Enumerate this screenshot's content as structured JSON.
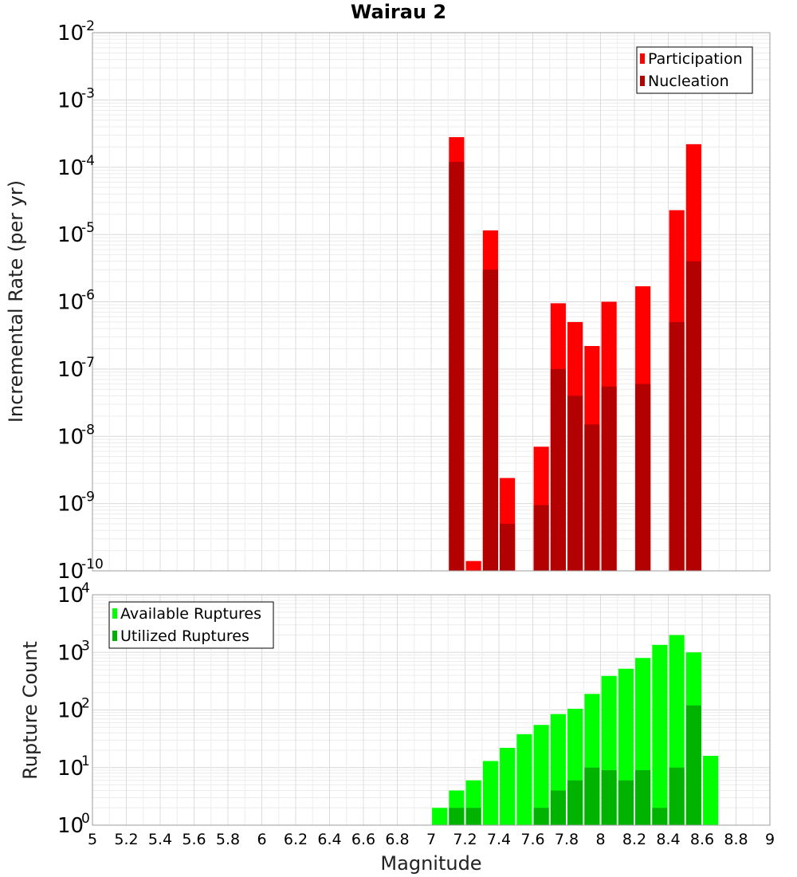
{
  "chart_data": [
    {
      "type": "bar",
      "title": "Wairau 2",
      "xlabel": "",
      "ylabel": "Incremental Rate (per yr)",
      "y_scale": "log",
      "xlim": [
        5,
        9
      ],
      "ylim": [
        1e-10,
        0.01
      ],
      "y_ticks": [
        {
          "base": "10",
          "exp": "-2",
          "value": 0.01
        },
        {
          "base": "10",
          "exp": "-3",
          "value": 0.001
        },
        {
          "base": "10",
          "exp": "-4",
          "value": 0.0001
        },
        {
          "base": "10",
          "exp": "-5",
          "value": 1e-05
        },
        {
          "base": "10",
          "exp": "-6",
          "value": 1e-06
        },
        {
          "base": "10",
          "exp": "-7",
          "value": 1e-07
        },
        {
          "base": "10",
          "exp": "-8",
          "value": 1e-08
        },
        {
          "base": "10",
          "exp": "-9",
          "value": 1e-09
        },
        {
          "base": "10",
          "exp": "-10",
          "value": 1e-10
        }
      ],
      "grid": true,
      "legend_position": "top-right",
      "bar_width": 0.09,
      "series": [
        {
          "name": "Participation",
          "color": "#ff0000",
          "points": [
            {
              "x": 7.15,
              "y": 0.00028
            },
            {
              "x": 7.25,
              "y": 1.4e-10
            },
            {
              "x": 7.35,
              "y": 1.15e-05
            },
            {
              "x": 7.45,
              "y": 2.4e-09
            },
            {
              "x": 7.65,
              "y": 7e-09
            },
            {
              "x": 7.75,
              "y": 9.5e-07
            },
            {
              "x": 7.85,
              "y": 5e-07
            },
            {
              "x": 7.95,
              "y": 2.2e-07
            },
            {
              "x": 8.05,
              "y": 1e-06
            },
            {
              "x": 8.25,
              "y": 1.7e-06
            },
            {
              "x": 8.45,
              "y": 2.3e-05
            },
            {
              "x": 8.55,
              "y": 0.00022
            }
          ]
        },
        {
          "name": "Nucleation",
          "color": "#b30000",
          "points": [
            {
              "x": 7.15,
              "y": 0.00012
            },
            {
              "x": 7.35,
              "y": 3e-06
            },
            {
              "x": 7.45,
              "y": 5e-10
            },
            {
              "x": 7.65,
              "y": 9.5e-10
            },
            {
              "x": 7.75,
              "y": 1e-07
            },
            {
              "x": 7.85,
              "y": 4e-08
            },
            {
              "x": 7.95,
              "y": 1.5e-08
            },
            {
              "x": 8.05,
              "y": 5.5e-08
            },
            {
              "x": 8.25,
              "y": 6e-08
            },
            {
              "x": 8.45,
              "y": 5e-07
            },
            {
              "x": 8.55,
              "y": 4e-06
            }
          ]
        }
      ]
    },
    {
      "type": "bar",
      "title": "",
      "xlabel": "Magnitude",
      "ylabel": "Rupture Count",
      "y_scale": "log",
      "xlim": [
        5,
        9
      ],
      "ylim": [
        1,
        10000
      ],
      "x_ticks": [
        "5",
        "5.2",
        "5.4",
        "5.6",
        "5.8",
        "6",
        "6.2",
        "6.4",
        "6.6",
        "6.8",
        "7",
        "7.2",
        "7.4",
        "7.6",
        "7.8",
        "8",
        "8.2",
        "8.4",
        "8.6",
        "8.8",
        "9"
      ],
      "y_ticks": [
        {
          "base": "10",
          "exp": "4",
          "value": 10000
        },
        {
          "base": "10",
          "exp": "3",
          "value": 1000
        },
        {
          "base": "10",
          "exp": "2",
          "value": 100
        },
        {
          "base": "10",
          "exp": "1",
          "value": 10
        },
        {
          "base": "10",
          "exp": "0",
          "value": 1
        }
      ],
      "grid": true,
      "legend_position": "top-left",
      "bar_width": 0.09,
      "series": [
        {
          "name": "Available Ruptures",
          "color": "#00ff00",
          "points": [
            {
              "x": 6.75,
              "y": 1
            },
            {
              "x": 6.95,
              "y": 1
            },
            {
              "x": 7.05,
              "y": 2
            },
            {
              "x": 7.15,
              "y": 4
            },
            {
              "x": 7.25,
              "y": 6
            },
            {
              "x": 7.35,
              "y": 13
            },
            {
              "x": 7.45,
              "y": 22
            },
            {
              "x": 7.55,
              "y": 38
            },
            {
              "x": 7.65,
              "y": 55
            },
            {
              "x": 7.75,
              "y": 85
            },
            {
              "x": 7.85,
              "y": 105
            },
            {
              "x": 7.95,
              "y": 190
            },
            {
              "x": 8.05,
              "y": 390
            },
            {
              "x": 8.15,
              "y": 520
            },
            {
              "x": 8.25,
              "y": 800
            },
            {
              "x": 8.35,
              "y": 1350
            },
            {
              "x": 8.45,
              "y": 2000
            },
            {
              "x": 8.55,
              "y": 1000
            },
            {
              "x": 8.65,
              "y": 16
            }
          ]
        },
        {
          "name": "Utilized Ruptures",
          "color": "#00b300",
          "points": [
            {
              "x": 7.15,
              "y": 2
            },
            {
              "x": 7.25,
              "y": 2
            },
            {
              "x": 7.35,
              "y": 1
            },
            {
              "x": 7.45,
              "y": 1
            },
            {
              "x": 7.65,
              "y": 2
            },
            {
              "x": 7.75,
              "y": 4
            },
            {
              "x": 7.85,
              "y": 6
            },
            {
              "x": 7.95,
              "y": 10
            },
            {
              "x": 8.05,
              "y": 9
            },
            {
              "x": 8.15,
              "y": 6
            },
            {
              "x": 8.25,
              "y": 9
            },
            {
              "x": 8.35,
              "y": 2
            },
            {
              "x": 8.45,
              "y": 10
            },
            {
              "x": 8.55,
              "y": 120
            }
          ]
        }
      ]
    }
  ]
}
